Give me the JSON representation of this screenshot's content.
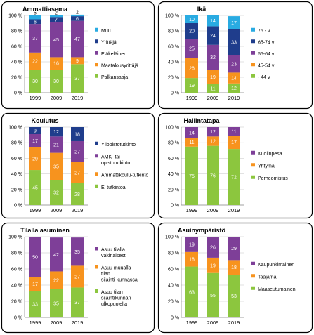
{
  "colors": {
    "green": "#8CC63E",
    "orange": "#F7931E",
    "purple": "#7E3F98",
    "navy": "#1F3D8C",
    "cyan": "#29ABE2",
    "grid": "#D9D9D9",
    "axis": "#808080"
  },
  "chart_data": [
    {
      "type": "bar",
      "stacked": true,
      "title": "Ammattiasema",
      "categories": [
        "1999",
        "2009",
        "2019"
      ],
      "ylim": [
        0,
        100
      ],
      "y_ticks": [
        "0 %",
        "20 %",
        "40 %",
        "60 %",
        "80 %",
        "100 %"
      ],
      "legend_position": "right",
      "series": [
        {
          "name": "Palkansaaja",
          "color": "#8CC63E",
          "values": [
            30,
            30,
            37
          ]
        },
        {
          "name": "Maatalousyrittäjä",
          "color": "#F7931E",
          "values": [
            22,
            16,
            9
          ]
        },
        {
          "name": "Eläkeläinen",
          "color": "#7E3F98",
          "values": [
            37,
            45,
            47
          ]
        },
        {
          "name": "Yrittäjä",
          "color": "#1F3D8C",
          "values": [
            6,
            7,
            6
          ]
        },
        {
          "name": "Muu",
          "color": "#29ABE2",
          "values": [
            5,
            2,
            2
          ]
        }
      ]
    },
    {
      "type": "bar",
      "stacked": true,
      "title": "Ikä",
      "categories": [
        "1999",
        "2009",
        "2019"
      ],
      "ylim": [
        0,
        100
      ],
      "y_ticks": [
        "0 %",
        "20 %",
        "40 %",
        "60 %",
        "80 %",
        "100 %"
      ],
      "legend_position": "right",
      "series": [
        {
          "name": "- 44 v",
          "color": "#8CC63E",
          "values": [
            19,
            11,
            12
          ]
        },
        {
          "name": "45-54 v",
          "color": "#F7931E",
          "values": [
            26,
            19,
            14
          ]
        },
        {
          "name": "55-64 v",
          "color": "#7E3F98",
          "values": [
            25,
            32,
            23
          ]
        },
        {
          "name": "65-74 v",
          "color": "#1F3D8C",
          "values": [
            20,
            24,
            33
          ]
        },
        {
          "name": "75 - v",
          "color": "#29ABE2",
          "values": [
            10,
            14,
            17
          ]
        }
      ]
    },
    {
      "type": "bar",
      "stacked": true,
      "title": "Koulutus",
      "categories": [
        "1999",
        "2009",
        "2019"
      ],
      "ylim": [
        0,
        100
      ],
      "y_ticks": [
        "0 %",
        "20 %",
        "40 %",
        "60 %",
        "80 %",
        "100 %"
      ],
      "legend_position": "right",
      "series": [
        {
          "name": "Ei tutkintoa",
          "color": "#8CC63E",
          "values": [
            45,
            32,
            28
          ]
        },
        {
          "name": "Ammattikoulu-tutkinto",
          "color": "#F7931E",
          "values": [
            29,
            35,
            27
          ]
        },
        {
          "name": "AMK- tai opistotutkinto",
          "color": "#7E3F98",
          "values": [
            17,
            21,
            27
          ]
        },
        {
          "name": "Yliopistotutkinto",
          "color": "#1F3D8C",
          "values": [
            9,
            12,
            18
          ]
        }
      ]
    },
    {
      "type": "bar",
      "stacked": true,
      "title": "Hallintatapa",
      "categories": [
        "1999",
        "2009",
        "2019"
      ],
      "ylim": [
        0,
        100
      ],
      "y_ticks": [
        "0 %",
        "20 %",
        "40 %",
        "60 %",
        "80 %",
        "100 %"
      ],
      "legend_position": "right",
      "series": [
        {
          "name": "Perheomistus",
          "color": "#8CC63E",
          "values": [
            75,
            76,
            72
          ]
        },
        {
          "name": "Yhtymä",
          "color": "#F7931E",
          "values": [
            11,
            12,
            17
          ]
        },
        {
          "name": "Kuolinpesä",
          "color": "#7E3F98",
          "values": [
            14,
            12,
            11
          ]
        }
      ]
    },
    {
      "type": "bar",
      "stacked": true,
      "title": "Tilalla asuminen",
      "categories": [
        "1999",
        "2009",
        "2019"
      ],
      "ylim": [
        0,
        100
      ],
      "y_ticks": [
        "0 %",
        "20 %",
        "40 %",
        "60 %",
        "80 %",
        "100 %"
      ],
      "legend_position": "right",
      "series": [
        {
          "name": "Asuu tilan sijaintikunnan ulkopuolella",
          "color": "#8CC63E",
          "values": [
            33,
            35,
            37
          ]
        },
        {
          "name": "Asuu muualla tilan sijainti-kunnassa",
          "color": "#F7931E",
          "values": [
            17,
            22,
            27
          ]
        },
        {
          "name": "Asuu tilalla vakinaisesti",
          "color": "#7E3F98",
          "values": [
            50,
            42,
            35
          ]
        }
      ]
    },
    {
      "type": "bar",
      "stacked": true,
      "title": "Asuinympäristö",
      "categories": [
        "1999",
        "2009",
        "2019"
      ],
      "ylim": [
        0,
        100
      ],
      "y_ticks": [
        "0 %",
        "20 %",
        "40 %",
        "60 %",
        "80 %",
        "100 %"
      ],
      "legend_position": "right",
      "series": [
        {
          "name": "Maaseutumainen",
          "color": "#8CC63E",
          "values": [
            63,
            55,
            53
          ]
        },
        {
          "name": "Taajama",
          "color": "#F7931E",
          "values": [
            18,
            19,
            18
          ]
        },
        {
          "name": "Kaupunkimainen",
          "color": "#7E3F98",
          "values": [
            19,
            26,
            29
          ]
        }
      ]
    }
  ]
}
